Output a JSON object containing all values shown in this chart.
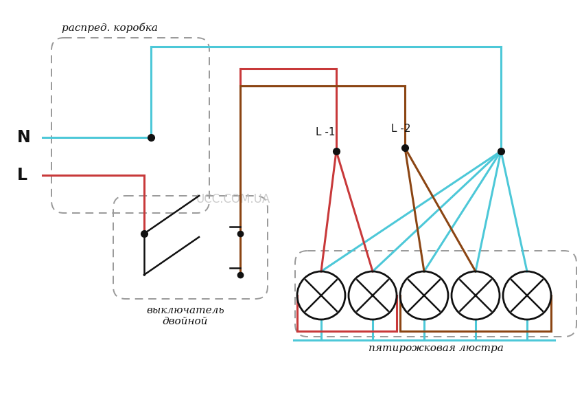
{
  "bg_color": "#ffffff",
  "cyan": "#4dc8d8",
  "red": "#c8393a",
  "brown": "#8B4513",
  "black": "#111111",
  "gray_text": "#c0c0c0",
  "dashed_color": "#999999",
  "lw": 2.2,
  "label_N": "N",
  "label_L": "L",
  "label_L1": "L -1",
  "label_L2": "L -2",
  "label_distrib": "распред. коробка",
  "label_switch": "выключатель\nдвойной",
  "label_chandelier": "пятирожковая люстра",
  "watermark": "UCC.COM.UA"
}
